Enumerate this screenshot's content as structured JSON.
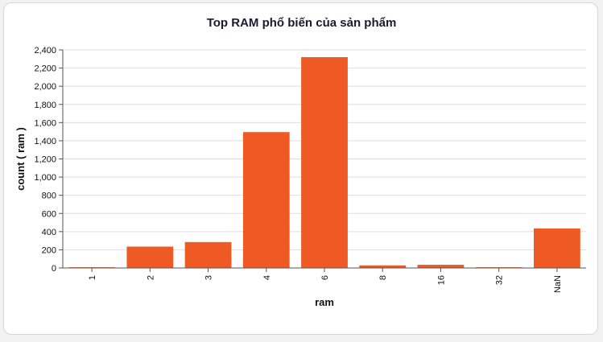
{
  "colors": {
    "bar": "#ef5a24",
    "grid": "#dedede",
    "axis": "#555555",
    "text": "#111111"
  },
  "chart_data": {
    "type": "bar",
    "title": "Top RAM phổ biến của sản phẩm",
    "xlabel": "ram",
    "ylabel": "count ( ram )",
    "categories": [
      "1",
      "2",
      "3",
      "4",
      "6",
      "8",
      "16",
      "32",
      "NaN"
    ],
    "values": [
      8,
      235,
      285,
      1495,
      2320,
      28,
      35,
      8,
      435
    ],
    "ylim": [
      0,
      2400
    ],
    "yticks": [
      0,
      200,
      400,
      600,
      800,
      1000,
      1200,
      1400,
      1600,
      1800,
      2000,
      2200,
      2400
    ],
    "ytick_labels": [
      "0",
      "200",
      "400",
      "600",
      "800",
      "1,000",
      "1,200",
      "1,400",
      "1,600",
      "1,800",
      "2,000",
      "2,200",
      "2,400"
    ],
    "grid": true,
    "legend": "none"
  }
}
